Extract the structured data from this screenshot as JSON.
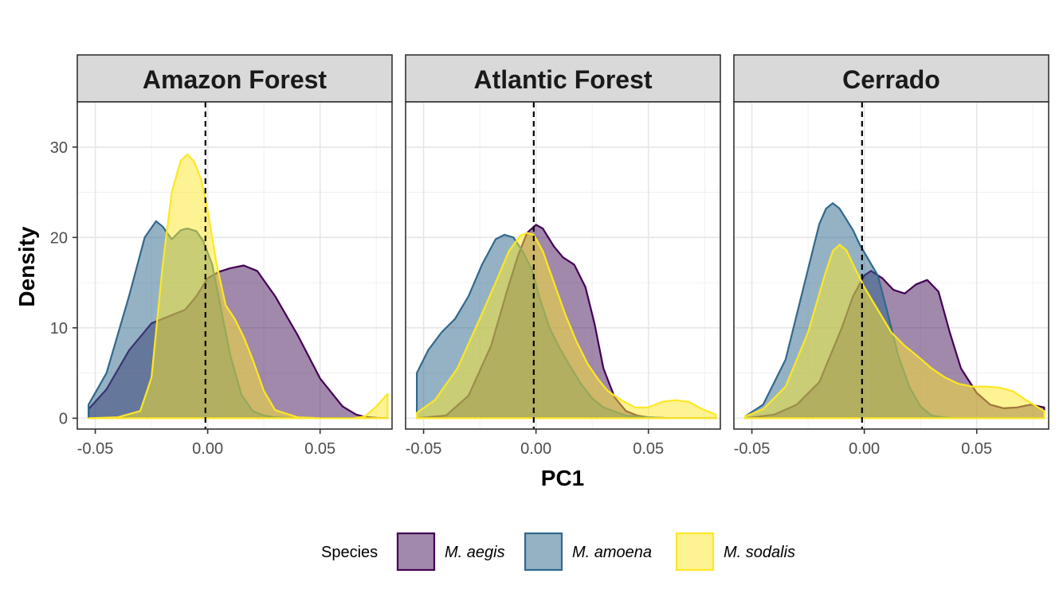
{
  "chart_data": {
    "type": "area",
    "subtype": "faceted density plot",
    "xlabel": "PC1",
    "ylabel": "Density",
    "xlim": [
      -0.058,
      0.082
    ],
    "ylim": [
      -1.2,
      35.0
    ],
    "x_ticks": [
      -0.05,
      0.0,
      0.05
    ],
    "x_tick_labels": [
      "-0.05",
      "0.00",
      "0.05"
    ],
    "y_ticks": [
      0,
      10,
      20,
      30
    ],
    "y_tick_labels": [
      "0",
      "10",
      "20",
      "30"
    ],
    "reference_line": {
      "x": -0.001,
      "style": "dashed"
    },
    "grid": true,
    "legend": {
      "title": "Species",
      "position": "bottom",
      "entries": [
        {
          "label": "M. aegis",
          "fill": "#44135a",
          "stroke": "#440154"
        },
        {
          "label": "M. amoena",
          "fill": "#2c668c",
          "stroke": "#31688e"
        },
        {
          "label": "M. sodalis",
          "fill": "#fde725",
          "stroke": "#fde725"
        }
      ]
    },
    "fill_opacity": 0.5,
    "facets": [
      {
        "title": "Amazon Forest",
        "series": [
          {
            "name": "M. aegis",
            "x": [
              -0.053,
              -0.045,
              -0.035,
              -0.025,
              -0.018,
              -0.01,
              -0.005,
              0.0,
              0.005,
              0.01,
              0.016,
              0.022,
              0.03,
              0.04,
              0.05,
              0.06,
              0.066,
              0.07,
              0.075,
              0.08
            ],
            "y": [
              1.0,
              3.2,
              7.5,
              10.5,
              11.2,
              12.0,
              13.5,
              15.5,
              16.2,
              16.6,
              16.9,
              16.3,
              13.5,
              9.2,
              4.4,
              1.3,
              0.4,
              0.15,
              0.05,
              0.0
            ]
          },
          {
            "name": "M. amoena",
            "x": [
              -0.053,
              -0.045,
              -0.035,
              -0.028,
              -0.023,
              -0.02,
              -0.016,
              -0.012,
              -0.009,
              -0.005,
              -0.002,
              0.002,
              0.006,
              0.01,
              0.015,
              0.02,
              0.025,
              0.03,
              0.04,
              0.05,
              0.065,
              0.08
            ],
            "y": [
              1.5,
              5.0,
              13.5,
              20.0,
              21.8,
              21.2,
              19.8,
              20.8,
              21.0,
              20.7,
              19.6,
              17.0,
              12.0,
              7.0,
              2.6,
              0.8,
              0.3,
              0.1,
              0.0,
              0.0,
              0.0,
              0.0
            ]
          },
          {
            "name": "M. sodalis",
            "x": [
              -0.053,
              -0.04,
              -0.03,
              -0.025,
              -0.02,
              -0.016,
              -0.012,
              -0.009,
              -0.006,
              -0.003,
              0.0,
              0.004,
              0.008,
              0.012,
              0.016,
              0.02,
              0.025,
              0.03,
              0.04,
              0.05,
              0.065,
              0.07,
              0.075,
              0.08
            ],
            "y": [
              0.0,
              0.1,
              0.8,
              4.5,
              17.0,
              25.0,
              28.5,
              29.2,
              28.4,
              26.5,
              23.0,
              17.0,
              12.5,
              11.0,
              9.0,
              6.5,
              3.0,
              0.9,
              0.1,
              0.0,
              0.0,
              0.2,
              1.3,
              2.7
            ]
          }
        ]
      },
      {
        "title": "Atlantic Forest",
        "series": [
          {
            "name": "M. aegis",
            "x": [
              -0.053,
              -0.04,
              -0.03,
              -0.02,
              -0.013,
              -0.008,
              -0.004,
              0.0,
              0.003,
              0.008,
              0.012,
              0.017,
              0.022,
              0.026,
              0.03,
              0.035,
              0.04,
              0.045,
              0.05,
              0.06,
              0.07,
              0.08
            ],
            "y": [
              0.0,
              0.3,
              2.5,
              8.0,
              14.0,
              18.0,
              20.5,
              21.4,
              21.0,
              19.0,
              17.8,
              17.0,
              14.5,
              10.5,
              5.5,
              2.3,
              0.8,
              0.3,
              0.1,
              0.0,
              0.0,
              0.0
            ]
          },
          {
            "name": "M. amoena",
            "x": [
              -0.053,
              -0.048,
              -0.042,
              -0.036,
              -0.03,
              -0.024,
              -0.018,
              -0.014,
              -0.01,
              -0.006,
              -0.002,
              0.002,
              0.006,
              0.01,
              0.015,
              0.02,
              0.025,
              0.03,
              0.04,
              0.05,
              0.06,
              0.08
            ],
            "y": [
              5.0,
              7.5,
              9.5,
              11.0,
              13.5,
              17.0,
              19.8,
              20.3,
              20.0,
              18.5,
              16.5,
              13.0,
              10.0,
              8.0,
              5.8,
              3.8,
              2.2,
              1.2,
              0.3,
              0.1,
              0.0,
              0.0
            ]
          },
          {
            "name": "M. sodalis",
            "x": [
              -0.053,
              -0.045,
              -0.035,
              -0.025,
              -0.018,
              -0.012,
              -0.007,
              -0.004,
              -0.001,
              0.003,
              0.008,
              0.013,
              0.018,
              0.023,
              0.028,
              0.032,
              0.038,
              0.044,
              0.05,
              0.056,
              0.062,
              0.068,
              0.074,
              0.08
            ],
            "y": [
              0.6,
              2.0,
              5.5,
              11.0,
              15.0,
              18.5,
              20.2,
              20.5,
              20.3,
              18.5,
              15.0,
              11.5,
              8.5,
              6.0,
              4.2,
              3.0,
              2.0,
              1.2,
              1.2,
              1.8,
              2.0,
              1.8,
              1.0,
              0.4
            ]
          }
        ]
      },
      {
        "title": "Cerrado",
        "series": [
          {
            "name": "M. aegis",
            "x": [
              -0.053,
              -0.04,
              -0.03,
              -0.02,
              -0.01,
              -0.005,
              0.0,
              0.003,
              0.008,
              0.013,
              0.018,
              0.023,
              0.028,
              0.033,
              0.038,
              0.043,
              0.05,
              0.056,
              0.062,
              0.068,
              0.074,
              0.08
            ],
            "y": [
              0.0,
              0.4,
              1.5,
              4.0,
              10.0,
              13.5,
              15.8,
              16.3,
              15.5,
              14.2,
              13.8,
              14.8,
              15.3,
              14.0,
              9.5,
              5.5,
              2.8,
              1.5,
              1.1,
              1.2,
              1.5,
              1.2
            ]
          },
          {
            "name": "M. amoena",
            "x": [
              -0.053,
              -0.045,
              -0.035,
              -0.025,
              -0.02,
              -0.017,
              -0.014,
              -0.011,
              -0.008,
              -0.005,
              -0.002,
              0.002,
              0.006,
              0.01,
              0.015,
              0.02,
              0.025,
              0.03,
              0.035,
              0.04,
              0.05,
              0.08
            ],
            "y": [
              0.2,
              1.5,
              6.5,
              16.5,
              21.5,
              23.2,
              23.8,
              23.2,
              22.0,
              20.8,
              19.2,
              17.5,
              15.8,
              12.0,
              7.0,
              3.5,
              1.3,
              0.3,
              0.1,
              0.0,
              0.0,
              0.0
            ]
          },
          {
            "name": "M. sodalis",
            "x": [
              -0.053,
              -0.045,
              -0.035,
              -0.025,
              -0.018,
              -0.014,
              -0.011,
              -0.008,
              -0.004,
              0.0,
              0.006,
              0.012,
              0.018,
              0.024,
              0.03,
              0.036,
              0.042,
              0.048,
              0.054,
              0.06,
              0.066,
              0.072,
              0.08
            ],
            "y": [
              0.2,
              1.0,
              3.5,
              9.5,
              15.5,
              18.5,
              19.2,
              18.6,
              16.5,
              14.5,
              12.0,
              9.5,
              8.0,
              6.8,
              5.5,
              4.5,
              3.8,
              3.5,
              3.5,
              3.4,
              3.0,
              2.0,
              0.8
            ]
          }
        ]
      }
    ]
  }
}
